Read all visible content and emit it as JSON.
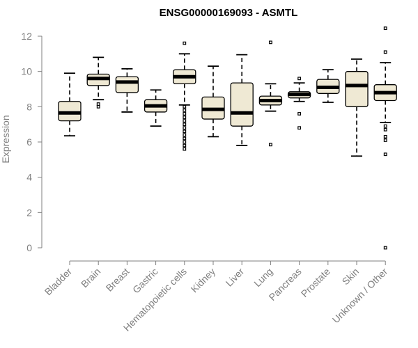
{
  "chart_data": {
    "type": "box",
    "title": "ENSG00000169093 - ASMTL",
    "xlabel": "",
    "ylabel": "Expression",
    "ylim": [
      0,
      12
    ],
    "y_ticks": [
      0,
      2,
      4,
      6,
      8,
      10,
      12
    ],
    "grid": false,
    "colors": {
      "box_fill": "#efe9d4",
      "box_stroke": "#000000",
      "axis": "#7f7f7f"
    },
    "categories": [
      "Bladder",
      "Brain",
      "Breast",
      "Gastric",
      "Hematopoietic cells",
      "Kidney",
      "Liver",
      "Lung",
      "Pancreas",
      "Prostate",
      "Skin",
      "Unknown / Other"
    ],
    "boxes": [
      {
        "category": "Bladder",
        "whisker_low": 6.35,
        "q1": 7.2,
        "median": 7.65,
        "q3": 8.3,
        "whisker_high": 9.9,
        "outliers": []
      },
      {
        "category": "Brain",
        "whisker_low": 8.4,
        "q1": 9.2,
        "median": 9.6,
        "q3": 9.85,
        "whisker_high": 10.8,
        "outliers": [
          8.0,
          8.15
        ]
      },
      {
        "category": "Breast",
        "whisker_low": 7.7,
        "q1": 8.8,
        "median": 9.4,
        "q3": 9.7,
        "whisker_high": 10.15,
        "outliers": []
      },
      {
        "category": "Gastric",
        "whisker_low": 6.9,
        "q1": 7.7,
        "median": 8.05,
        "q3": 8.4,
        "whisker_high": 8.95,
        "outliers": []
      },
      {
        "category": "Hematopoietic cells",
        "whisker_low": 8.1,
        "q1": 9.3,
        "median": 9.7,
        "q3": 10.1,
        "whisker_high": 11.0,
        "outliers": [
          11.6,
          8.0,
          7.8,
          7.6,
          7.4,
          7.2,
          7.0,
          6.8,
          6.6,
          6.4,
          6.2,
          6.0,
          5.8,
          5.6
        ]
      },
      {
        "category": "Kidney",
        "whisker_low": 6.3,
        "q1": 7.3,
        "median": 7.85,
        "q3": 8.55,
        "whisker_high": 10.3,
        "outliers": []
      },
      {
        "category": "Liver",
        "whisker_low": 5.8,
        "q1": 6.9,
        "median": 7.65,
        "q3": 9.35,
        "whisker_high": 10.95,
        "outliers": []
      },
      {
        "category": "Lung",
        "whisker_low": 7.75,
        "q1": 8.1,
        "median": 8.35,
        "q3": 8.6,
        "whisker_high": 9.3,
        "outliers": [
          11.65,
          5.85
        ]
      },
      {
        "category": "Pancreas",
        "whisker_low": 8.3,
        "q1": 8.5,
        "median": 8.7,
        "q3": 8.85,
        "whisker_high": 9.35,
        "outliers": [
          9.6,
          7.6,
          6.8
        ]
      },
      {
        "category": "Prostate",
        "whisker_low": 8.25,
        "q1": 8.75,
        "median": 9.1,
        "q3": 9.55,
        "whisker_high": 10.1,
        "outliers": []
      },
      {
        "category": "Skin",
        "whisker_low": 5.2,
        "q1": 8.0,
        "median": 9.2,
        "q3": 10.0,
        "whisker_high": 10.7,
        "outliers": []
      },
      {
        "category": "Unknown / Other",
        "whisker_low": 7.1,
        "q1": 8.35,
        "median": 8.8,
        "q3": 9.25,
        "whisker_high": 10.5,
        "outliers": [
          12.45,
          11.1,
          6.9,
          6.7,
          6.3,
          6.1,
          5.3,
          0.0
        ]
      }
    ]
  }
}
